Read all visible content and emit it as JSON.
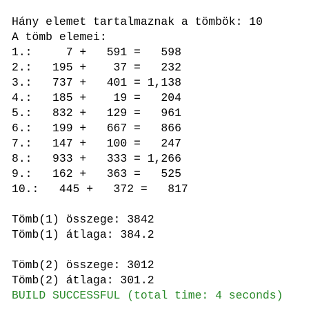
{
  "output": {
    "lines": [
      "Hány elemet tartalmaznak a tömbök: 10",
      "A tömb elemei:",
      "1.:     7 +   591 =   598",
      "2.:   195 +    37 =   232",
      "3.:   737 +   401 = 1,138",
      "4.:   185 +    19 =   204",
      "5.:   832 +   129 =   961",
      "6.:   199 +   667 =   866",
      "7.:   147 +   100 =   247",
      "8.:   933 +   333 = 1,266",
      "9.:   162 +   363 =   525",
      "10.:   445 +   372 =   817"
    ],
    "sum1": "Tömb(1) összege: 3842",
    "avg1": "Tömb(1) átlaga: 384.2",
    "sum2": "Tömb(2) összege: 3012",
    "avg2": "Tömb(2) átlaga: 301.2",
    "build": "BUILD SUCCESSFUL (total time: 4 seconds)"
  }
}
